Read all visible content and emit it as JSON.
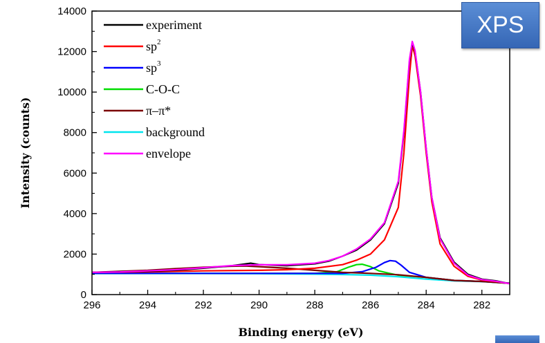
{
  "badge": {
    "label": "XPS"
  },
  "chart_data": {
    "type": "line",
    "xlabel": "Binding energy (eV)",
    "ylabel": "Intensity (counts)",
    "xlim": [
      296,
      281
    ],
    "ylim": [
      0,
      14000
    ],
    "x_ticks": [
      "296",
      "294",
      "292",
      "290",
      "288",
      "286",
      "284",
      "282"
    ],
    "y_ticks": [
      "0",
      "2000",
      "4000",
      "6000",
      "8000",
      "10000",
      "12000",
      "14000"
    ],
    "legend": "top-left",
    "grid": false,
    "series": [
      {
        "name": "experiment",
        "color": "#000000",
        "points": [
          [
            296,
            1100
          ],
          [
            295,
            1130
          ],
          [
            294,
            1150
          ],
          [
            293,
            1200
          ],
          [
            292,
            1300
          ],
          [
            291,
            1420
          ],
          [
            290.3,
            1550
          ],
          [
            290,
            1480
          ],
          [
            289,
            1430
          ],
          [
            288,
            1520
          ],
          [
            287.5,
            1650
          ],
          [
            287,
            1900
          ],
          [
            286.5,
            2200
          ],
          [
            286,
            2700
          ],
          [
            285.5,
            3500
          ],
          [
            285,
            5500
          ],
          [
            284.8,
            8000
          ],
          [
            284.6,
            11500
          ],
          [
            284.5,
            12450
          ],
          [
            284.4,
            12000
          ],
          [
            284.2,
            10000
          ],
          [
            284,
            7200
          ],
          [
            283.8,
            4800
          ],
          [
            283.5,
            2800
          ],
          [
            283,
            1600
          ],
          [
            282.5,
            1000
          ],
          [
            282,
            760
          ],
          [
            281.5,
            680
          ],
          [
            281,
            540
          ]
        ]
      },
      {
        "name": "sp",
        "sup": "2",
        "color": "#ff0000",
        "points": [
          [
            296,
            1100
          ],
          [
            294,
            1120
          ],
          [
            292,
            1170
          ],
          [
            290,
            1200
          ],
          [
            289,
            1230
          ],
          [
            288,
            1300
          ],
          [
            287,
            1480
          ],
          [
            286.5,
            1700
          ],
          [
            286,
            2000
          ],
          [
            285.5,
            2700
          ],
          [
            285,
            4300
          ],
          [
            284.8,
            7000
          ],
          [
            284.6,
            10800
          ],
          [
            284.5,
            12300
          ],
          [
            284.4,
            11800
          ],
          [
            284.2,
            9800
          ],
          [
            284,
            7000
          ],
          [
            283.8,
            4600
          ],
          [
            283.5,
            2500
          ],
          [
            283,
            1400
          ],
          [
            282.5,
            900
          ],
          [
            282,
            720
          ],
          [
            281.5,
            650
          ],
          [
            281,
            540
          ]
        ]
      },
      {
        "name": "sp",
        "sup": "3",
        "color": "#0000ff",
        "points": [
          [
            296,
            1050
          ],
          [
            290,
            1050
          ],
          [
            287,
            1050
          ],
          [
            286.3,
            1130
          ],
          [
            285.8,
            1350
          ],
          [
            285.5,
            1580
          ],
          [
            285.3,
            1680
          ],
          [
            285.1,
            1650
          ],
          [
            284.9,
            1450
          ],
          [
            284.6,
            1100
          ],
          [
            284,
            850
          ],
          [
            283,
            700
          ],
          [
            282,
            650
          ],
          [
            281,
            560
          ]
        ]
      },
      {
        "name": "C-O-C",
        "color": "#00dd00",
        "points": [
          [
            296,
            1050
          ],
          [
            288,
            1050
          ],
          [
            287.2,
            1130
          ],
          [
            286.8,
            1350
          ],
          [
            286.5,
            1480
          ],
          [
            286.3,
            1500
          ],
          [
            286,
            1380
          ],
          [
            285.7,
            1170
          ],
          [
            285.3,
            1040
          ],
          [
            285,
            960
          ],
          [
            284,
            850
          ],
          [
            283,
            700
          ],
          [
            282,
            650
          ],
          [
            281,
            560
          ]
        ]
      },
      {
        "name": "π–π*",
        "color": "#7a0000",
        "points": [
          [
            296,
            1100
          ],
          [
            294,
            1200
          ],
          [
            293,
            1280
          ],
          [
            292,
            1350
          ],
          [
            291,
            1400
          ],
          [
            290.5,
            1410
          ],
          [
            290,
            1380
          ],
          [
            289,
            1300
          ],
          [
            288,
            1200
          ],
          [
            287,
            1100
          ],
          [
            286,
            1050
          ],
          [
            285,
            980
          ],
          [
            284,
            850
          ],
          [
            283,
            700
          ],
          [
            282,
            650
          ],
          [
            281,
            560
          ]
        ]
      },
      {
        "name": "background",
        "color": "#00e5ee",
        "points": [
          [
            296,
            1040
          ],
          [
            292,
            1040
          ],
          [
            290,
            1030
          ],
          [
            288,
            1010
          ],
          [
            287,
            990
          ],
          [
            286,
            960
          ],
          [
            285,
            880
          ],
          [
            284,
            760
          ],
          [
            283,
            680
          ],
          [
            282,
            640
          ],
          [
            281,
            560
          ]
        ]
      },
      {
        "name": "envelope",
        "color": "#ff00ff",
        "points": [
          [
            296,
            1100
          ],
          [
            295,
            1120
          ],
          [
            294,
            1170
          ],
          [
            293,
            1230
          ],
          [
            292,
            1330
          ],
          [
            291,
            1430
          ],
          [
            290,
            1470
          ],
          [
            289,
            1470
          ],
          [
            288,
            1550
          ],
          [
            287.5,
            1680
          ],
          [
            287,
            1900
          ],
          [
            286.5,
            2250
          ],
          [
            286,
            2750
          ],
          [
            285.5,
            3550
          ],
          [
            285,
            5600
          ],
          [
            284.8,
            8100
          ],
          [
            284.6,
            11600
          ],
          [
            284.5,
            12500
          ],
          [
            284.4,
            12050
          ],
          [
            284.2,
            10000
          ],
          [
            284,
            7200
          ],
          [
            283.8,
            4800
          ],
          [
            283.5,
            2750
          ],
          [
            283,
            1550
          ],
          [
            282.5,
            960
          ],
          [
            282,
            740
          ],
          [
            281.5,
            660
          ],
          [
            281,
            540
          ]
        ]
      }
    ]
  }
}
